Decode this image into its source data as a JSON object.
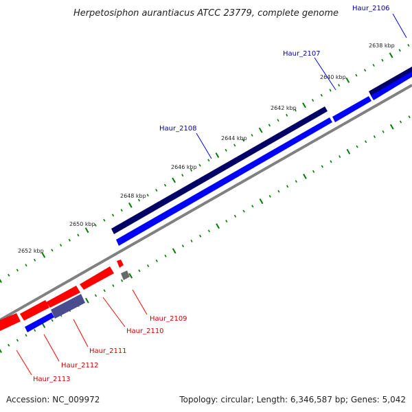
{
  "title": "Herpetosiphon aurantiacus ATCC 23779, complete genome",
  "footer": {
    "accession": "Accession: NC_009972",
    "summary": "Topology: circular; Length: 6,346,587 bp; Genes: 5,042"
  },
  "colors": {
    "forward_outer": "#000066",
    "forward_inner": "#0000ff",
    "reverse_gene": "#ff0000",
    "reverse_other": "#4b4b8f",
    "backbone": "#808080",
    "ticks": "#007a00",
    "label_forward": "#000099",
    "label_reverse": "#cc0000"
  },
  "ticks": [
    {
      "label": "2638 kbp"
    },
    {
      "label": "2640 kbp"
    },
    {
      "label": "2642 kbp"
    },
    {
      "label": "2644 kbp"
    },
    {
      "label": "2646 kbp"
    },
    {
      "label": "2648 kbp"
    },
    {
      "label": "2650 kbp"
    },
    {
      "label": "2652 kbp"
    }
  ],
  "genes": [
    {
      "name": "Haur_2106",
      "strand": "forward"
    },
    {
      "name": "Haur_2107",
      "strand": "forward"
    },
    {
      "name": "Haur_2108",
      "strand": "forward"
    },
    {
      "name": "Haur_2109",
      "strand": "reverse"
    },
    {
      "name": "Haur_2110",
      "strand": "reverse"
    },
    {
      "name": "Haur_2111",
      "strand": "reverse"
    },
    {
      "name": "Haur_2112",
      "strand": "reverse"
    },
    {
      "name": "Haur_2113",
      "strand": "reverse"
    }
  ]
}
